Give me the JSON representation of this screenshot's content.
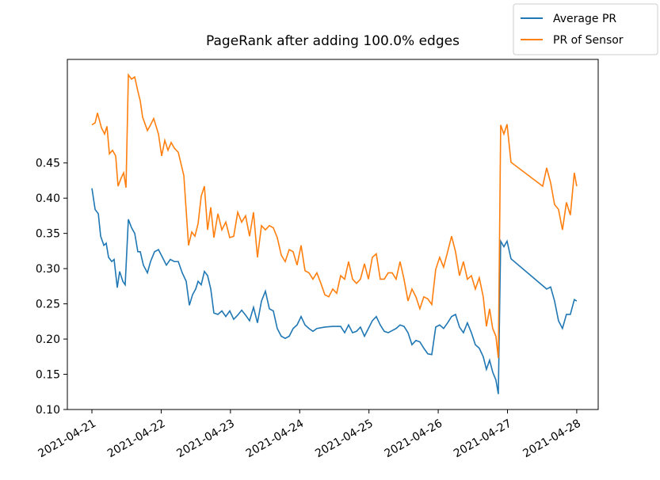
{
  "chart_data": {
    "type": "line",
    "title": "PageRank after adding 100.0% edges",
    "xlim": [
      -0.355,
      7.31
    ],
    "ylim": [
      0.1,
      0.597
    ],
    "xticks": [
      {
        "value": 0,
        "label": "2021-04-21"
      },
      {
        "value": 1,
        "label": "2021-04-22"
      },
      {
        "value": 2,
        "label": "2021-04-23"
      },
      {
        "value": 3,
        "label": "2021-04-24"
      },
      {
        "value": 4,
        "label": "2021-04-25"
      },
      {
        "value": 5,
        "label": "2021-04-26"
      },
      {
        "value": 6,
        "label": "2021-04-27"
      },
      {
        "value": 7,
        "label": "2021-04-28"
      }
    ],
    "yticks": [
      {
        "value": 0.1,
        "label": "0.10"
      },
      0.15,
      {
        "value": 0.2,
        "label": "0.20"
      },
      0.25,
      {
        "value": 0.3,
        "label": "0.30"
      },
      0.35,
      {
        "value": 0.4,
        "label": "0.40"
      },
      0.45
    ],
    "grid": false,
    "legend": "upper right",
    "series": [
      {
        "name": "Average PR",
        "color": "#1f77b4",
        "x": [
          0,
          0.046,
          0.092,
          0.126,
          0.172,
          0.206,
          0.24,
          0.286,
          0.32,
          0.366,
          0.4,
          0.446,
          0.48,
          0.526,
          0.572,
          0.618,
          0.663,
          0.698,
          0.743,
          0.801,
          0.846,
          0.904,
          0.961,
          1.018,
          1.075,
          1.132,
          1.19,
          1.247,
          1.304,
          1.361,
          1.407,
          1.453,
          1.498,
          1.533,
          1.578,
          1.624,
          1.67,
          1.716,
          1.761,
          1.819,
          1.876,
          1.933,
          1.99,
          2.047,
          2.105,
          2.162,
          2.219,
          2.276,
          2.333,
          2.39,
          2.448,
          2.505,
          2.562,
          2.619,
          2.676,
          2.734,
          2.791,
          2.848,
          2.905,
          2.962,
          3.02,
          3.077,
          3.134,
          3.191,
          3.248,
          3.363,
          3.477,
          3.591,
          3.649,
          3.706,
          3.763,
          3.82,
          3.877,
          3.935,
          3.992,
          4.049,
          4.106,
          4.163,
          4.221,
          4.278,
          4.392,
          4.449,
          4.506,
          4.564,
          4.621,
          4.678,
          4.735,
          4.792,
          4.85,
          4.907,
          4.964,
          5.021,
          5.078,
          5.136,
          5.193,
          5.25,
          5.307,
          5.364,
          5.421,
          5.479,
          5.536,
          5.593,
          5.65,
          5.696,
          5.742,
          5.787,
          5.833,
          5.868,
          5.902,
          5.948,
          5.994,
          6.051,
          6.566,
          6.623,
          6.68,
          6.737,
          6.794,
          6.851,
          6.908,
          6.965,
          7.0
        ],
        "values": [
          0.414,
          0.384,
          0.378,
          0.346,
          0.333,
          0.336,
          0.316,
          0.31,
          0.313,
          0.273,
          0.296,
          0.282,
          0.277,
          0.37,
          0.358,
          0.35,
          0.324,
          0.324,
          0.305,
          0.294,
          0.31,
          0.324,
          0.327,
          0.316,
          0.305,
          0.313,
          0.31,
          0.31,
          0.294,
          0.282,
          0.248,
          0.263,
          0.271,
          0.282,
          0.277,
          0.296,
          0.29,
          0.271,
          0.237,
          0.235,
          0.24,
          0.232,
          0.24,
          0.228,
          0.234,
          0.241,
          0.234,
          0.226,
          0.245,
          0.223,
          0.254,
          0.268,
          0.243,
          0.24,
          0.215,
          0.204,
          0.201,
          0.204,
          0.215,
          0.22,
          0.232,
          0.22,
          0.215,
          0.211,
          0.215,
          0.217,
          0.218,
          0.218,
          0.209,
          0.22,
          0.209,
          0.211,
          0.217,
          0.204,
          0.215,
          0.226,
          0.232,
          0.22,
          0.211,
          0.209,
          0.215,
          0.22,
          0.218,
          0.209,
          0.192,
          0.198,
          0.196,
          0.187,
          0.179,
          0.178,
          0.217,
          0.22,
          0.215,
          0.223,
          0.232,
          0.235,
          0.217,
          0.209,
          0.223,
          0.209,
          0.192,
          0.187,
          0.175,
          0.157,
          0.17,
          0.153,
          0.142,
          0.122,
          0.339,
          0.331,
          0.339,
          0.314,
          0.271,
          0.274,
          0.254,
          0.226,
          0.215,
          0.235,
          0.235,
          0.256,
          0.254
        ]
      },
      {
        "name": "PR of Sensor",
        "color": "#ff7f0e",
        "x": [
          0,
          0.046,
          0.08,
          0.137,
          0.183,
          0.217,
          0.252,
          0.297,
          0.343,
          0.377,
          0.423,
          0.458,
          0.492,
          0.526,
          0.572,
          0.618,
          0.663,
          0.698,
          0.732,
          0.801,
          0.846,
          0.892,
          0.961,
          1.007,
          1.052,
          1.098,
          1.144,
          1.19,
          1.247,
          1.327,
          1.395,
          1.441,
          1.487,
          1.533,
          1.578,
          1.624,
          1.67,
          1.716,
          1.761,
          1.819,
          1.876,
          1.933,
          1.99,
          2.047,
          2.105,
          2.162,
          2.219,
          2.276,
          2.333,
          2.39,
          2.448,
          2.505,
          2.562,
          2.619,
          2.676,
          2.734,
          2.791,
          2.848,
          2.905,
          2.962,
          3.02,
          3.077,
          3.134,
          3.191,
          3.248,
          3.306,
          3.363,
          3.42,
          3.477,
          3.534,
          3.591,
          3.649,
          3.706,
          3.763,
          3.82,
          3.877,
          3.935,
          3.992,
          4.049,
          4.106,
          4.163,
          4.221,
          4.278,
          4.335,
          4.392,
          4.449,
          4.506,
          4.564,
          4.621,
          4.678,
          4.735,
          4.792,
          4.85,
          4.907,
          4.964,
          5.021,
          5.078,
          5.136,
          5.193,
          5.25,
          5.307,
          5.364,
          5.421,
          5.479,
          5.536,
          5.593,
          5.65,
          5.696,
          5.742,
          5.787,
          5.833,
          5.868,
          5.902,
          5.948,
          5.994,
          6.051,
          6.509,
          6.566,
          6.623,
          6.68,
          6.737,
          6.794,
          6.851,
          6.908,
          6.965,
          7.0
        ],
        "values": [
          0.504,
          0.507,
          0.521,
          0.5,
          0.491,
          0.502,
          0.463,
          0.468,
          0.46,
          0.417,
          0.429,
          0.436,
          0.415,
          0.575,
          0.569,
          0.572,
          0.552,
          0.538,
          0.515,
          0.496,
          0.504,
          0.513,
          0.491,
          0.46,
          0.482,
          0.468,
          0.479,
          0.471,
          0.465,
          0.432,
          0.333,
          0.352,
          0.346,
          0.364,
          0.403,
          0.417,
          0.355,
          0.387,
          0.344,
          0.378,
          0.355,
          0.366,
          0.344,
          0.346,
          0.38,
          0.366,
          0.375,
          0.346,
          0.38,
          0.316,
          0.361,
          0.355,
          0.361,
          0.358,
          0.344,
          0.319,
          0.31,
          0.327,
          0.324,
          0.305,
          0.333,
          0.297,
          0.294,
          0.285,
          0.294,
          0.279,
          0.263,
          0.26,
          0.271,
          0.265,
          0.29,
          0.285,
          0.31,
          0.285,
          0.279,
          0.285,
          0.307,
          0.285,
          0.316,
          0.321,
          0.285,
          0.285,
          0.294,
          0.294,
          0.285,
          0.31,
          0.285,
          0.254,
          0.271,
          0.26,
          0.243,
          0.26,
          0.257,
          0.249,
          0.299,
          0.316,
          0.302,
          0.324,
          0.346,
          0.324,
          0.29,
          0.31,
          0.285,
          0.29,
          0.271,
          0.287,
          0.26,
          0.218,
          0.243,
          0.215,
          0.204,
          0.173,
          0.504,
          0.491,
          0.505,
          0.451,
          0.417,
          0.443,
          0.422,
          0.391,
          0.384,
          0.355,
          0.394,
          0.376,
          0.436,
          0.417
        ]
      }
    ]
  }
}
